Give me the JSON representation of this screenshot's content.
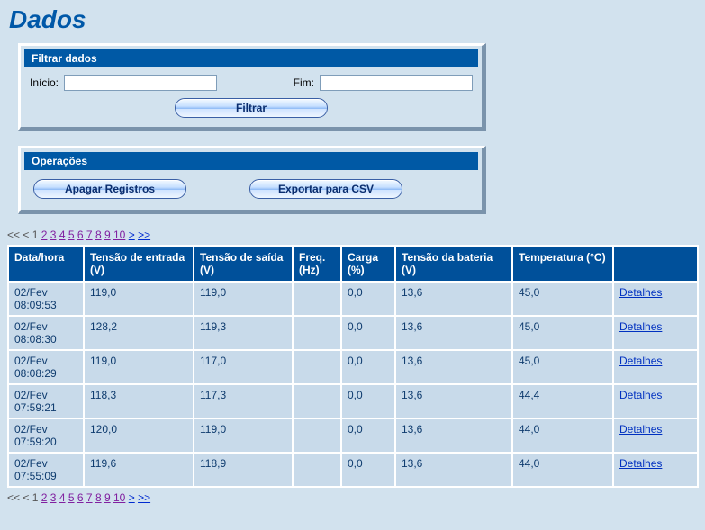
{
  "page": {
    "title": "Dados"
  },
  "filterPanel": {
    "header": "Filtrar dados",
    "startLabel": "Início:",
    "endLabel": "Fim:",
    "startValue": "",
    "endValue": "",
    "buttonLabel": "Filtrar"
  },
  "opsPanel": {
    "header": "Operações",
    "deleteLabel": "Apagar Registros",
    "exportLabel": "Exportar para CSV"
  },
  "pager": {
    "prevAll": "<<",
    "prev": "<",
    "next": ">",
    "nextAll": ">>",
    "current": "1",
    "pages": [
      "2",
      "3",
      "4",
      "5",
      "6",
      "7",
      "8",
      "9",
      "10"
    ]
  },
  "table": {
    "headers": {
      "datetime": "Data/hora",
      "vin": "Tensão de entrada (V)",
      "vout": "Tensão de saída (V)",
      "freq": "Freq. (Hz)",
      "load": "Carga (%)",
      "batt": "Tensão da bateria (V)",
      "temp": "Temperatura (°C)",
      "details": ""
    },
    "detailsLabel": "Detalhes",
    "rows": [
      {
        "datetime": "02/Fev\n08:09:53",
        "vin": "119,0",
        "vout": "119,0",
        "freq": "",
        "load": "0,0",
        "batt": "13,6",
        "temp": "45,0"
      },
      {
        "datetime": "02/Fev\n08:08:30",
        "vin": "128,2",
        "vout": "119,3",
        "freq": "",
        "load": "0,0",
        "batt": "13,6",
        "temp": "45,0"
      },
      {
        "datetime": "02/Fev\n08:08:29",
        "vin": "119,0",
        "vout": "117,0",
        "freq": "",
        "load": "0,0",
        "batt": "13,6",
        "temp": "45,0"
      },
      {
        "datetime": "02/Fev\n07:59:21",
        "vin": "118,3",
        "vout": "117,3",
        "freq": "",
        "load": "0,0",
        "batt": "13,6",
        "temp": "44,4"
      },
      {
        "datetime": "02/Fev\n07:59:20",
        "vin": "120,0",
        "vout": "119,0",
        "freq": "",
        "load": "0,0",
        "batt": "13,6",
        "temp": "44,0"
      },
      {
        "datetime": "02/Fev\n07:55:09",
        "vin": "119,6",
        "vout": "118,9",
        "freq": "",
        "load": "0,0",
        "batt": "13,6",
        "temp": "44,0"
      }
    ]
  }
}
